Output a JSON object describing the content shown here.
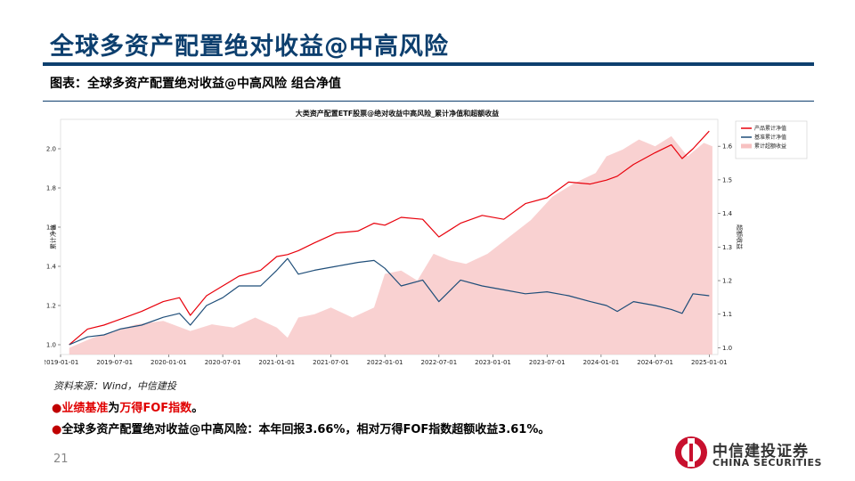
{
  "header": {
    "title": "全球多资产配置绝对收益@中高风险",
    "caption": "图表：全球多资产配置绝对收益@中高风险 组合净值"
  },
  "chart_data": {
    "type": "line",
    "title": "大类资产配置ETF股票@绝对收益中高风险_累计净值和超额收益",
    "xlabel": "",
    "ylabel": "累计净值",
    "y2label": "超额收益",
    "x_ticks": [
      "2019-01-01",
      "2019-07-01",
      "2020-01-01",
      "2020-07-01",
      "2021-01-01",
      "2021-07-01",
      "2022-01-01",
      "2022-07-01",
      "2023-01-01",
      "2023-07-01",
      "2024-01-01",
      "2024-07-01",
      "2025-01-01"
    ],
    "x_range": [
      2019.0,
      2025.08
    ],
    "ylim": [
      0.95,
      2.15
    ],
    "y_ticks": [
      1.0,
      1.2,
      1.4,
      1.6,
      1.8,
      2.0
    ],
    "y2lim": [
      0.98,
      1.68
    ],
    "y2_ticks": [
      1.0,
      1.1,
      1.2,
      1.3,
      1.4,
      1.5,
      1.6
    ],
    "legend_position": "top-right",
    "series": [
      {
        "name": "产品累计净值",
        "axis": "left",
        "color": "#e8000b",
        "x": [
          2019.08,
          2019.25,
          2019.4,
          2019.55,
          2019.75,
          2019.95,
          2020.1,
          2020.2,
          2020.35,
          2020.5,
          2020.65,
          2020.85,
          2021.0,
          2021.1,
          2021.2,
          2021.35,
          2021.55,
          2021.75,
          2021.9,
          2022.0,
          2022.15,
          2022.35,
          2022.5,
          2022.7,
          2022.9,
          2023.1,
          2023.3,
          2023.5,
          2023.7,
          2023.9,
          2024.05,
          2024.15,
          2024.3,
          2024.5,
          2024.65,
          2024.75,
          2024.85,
          2025.0
        ],
        "values": [
          1.0,
          1.08,
          1.1,
          1.13,
          1.17,
          1.22,
          1.24,
          1.15,
          1.25,
          1.3,
          1.35,
          1.38,
          1.45,
          1.46,
          1.48,
          1.52,
          1.57,
          1.58,
          1.62,
          1.61,
          1.65,
          1.64,
          1.55,
          1.62,
          1.66,
          1.64,
          1.72,
          1.75,
          1.83,
          1.82,
          1.84,
          1.86,
          1.92,
          1.98,
          2.02,
          1.95,
          2.0,
          2.09
        ]
      },
      {
        "name": "基准累计净值",
        "axis": "left",
        "color": "#1f4e79",
        "x": [
          2019.08,
          2019.25,
          2019.4,
          2019.55,
          2019.75,
          2019.95,
          2020.1,
          2020.2,
          2020.35,
          2020.5,
          2020.65,
          2020.85,
          2021.0,
          2021.1,
          2021.2,
          2021.35,
          2021.55,
          2021.75,
          2021.9,
          2022.0,
          2022.15,
          2022.35,
          2022.5,
          2022.7,
          2022.9,
          2023.1,
          2023.3,
          2023.5,
          2023.7,
          2023.9,
          2024.05,
          2024.15,
          2024.3,
          2024.5,
          2024.65,
          2024.75,
          2024.85,
          2025.0
        ],
        "values": [
          1.0,
          1.04,
          1.05,
          1.08,
          1.1,
          1.14,
          1.16,
          1.1,
          1.2,
          1.24,
          1.3,
          1.3,
          1.38,
          1.44,
          1.36,
          1.38,
          1.4,
          1.42,
          1.43,
          1.39,
          1.3,
          1.33,
          1.22,
          1.33,
          1.3,
          1.28,
          1.26,
          1.27,
          1.25,
          1.22,
          1.2,
          1.17,
          1.22,
          1.2,
          1.18,
          1.16,
          1.26,
          1.25
        ]
      },
      {
        "name": "累计超额收益",
        "axis": "right",
        "type": "area",
        "color": "#f7c1c1",
        "x": [
          2019.08,
          2019.3,
          2019.5,
          2019.7,
          2019.95,
          2020.2,
          2020.4,
          2020.6,
          2020.8,
          2021.0,
          2021.1,
          2021.2,
          2021.35,
          2021.5,
          2021.7,
          2021.9,
          2022.0,
          2022.15,
          2022.3,
          2022.45,
          2022.6,
          2022.75,
          2022.95,
          2023.15,
          2023.35,
          2023.55,
          2023.75,
          2023.95,
          2024.05,
          2024.2,
          2024.35,
          2024.5,
          2024.65,
          2024.8,
          2024.95,
          2025.03
        ],
        "values": [
          1.0,
          1.03,
          1.05,
          1.07,
          1.08,
          1.05,
          1.07,
          1.06,
          1.09,
          1.06,
          1.03,
          1.09,
          1.1,
          1.12,
          1.09,
          1.12,
          1.22,
          1.23,
          1.2,
          1.28,
          1.26,
          1.25,
          1.28,
          1.33,
          1.38,
          1.45,
          1.49,
          1.52,
          1.57,
          1.59,
          1.62,
          1.6,
          1.63,
          1.57,
          1.61,
          1.6
        ]
      }
    ]
  },
  "notes": {
    "source": "资料来源：Wind，中信建投",
    "bullet1_part1": "业绩基准",
    "bullet1_part2": "为",
    "bullet1_part3": "万得FOF指数",
    "bullet1_part4": "。",
    "bullet2": "全球多资产配置绝对收益@中高风险：本年回报3.66%，相对万得FOF指数超额收益3.61%。"
  },
  "footer": {
    "page_number": "21",
    "logo_cn": "中信建投证券",
    "logo_en": "CHINA SECURITIES"
  }
}
